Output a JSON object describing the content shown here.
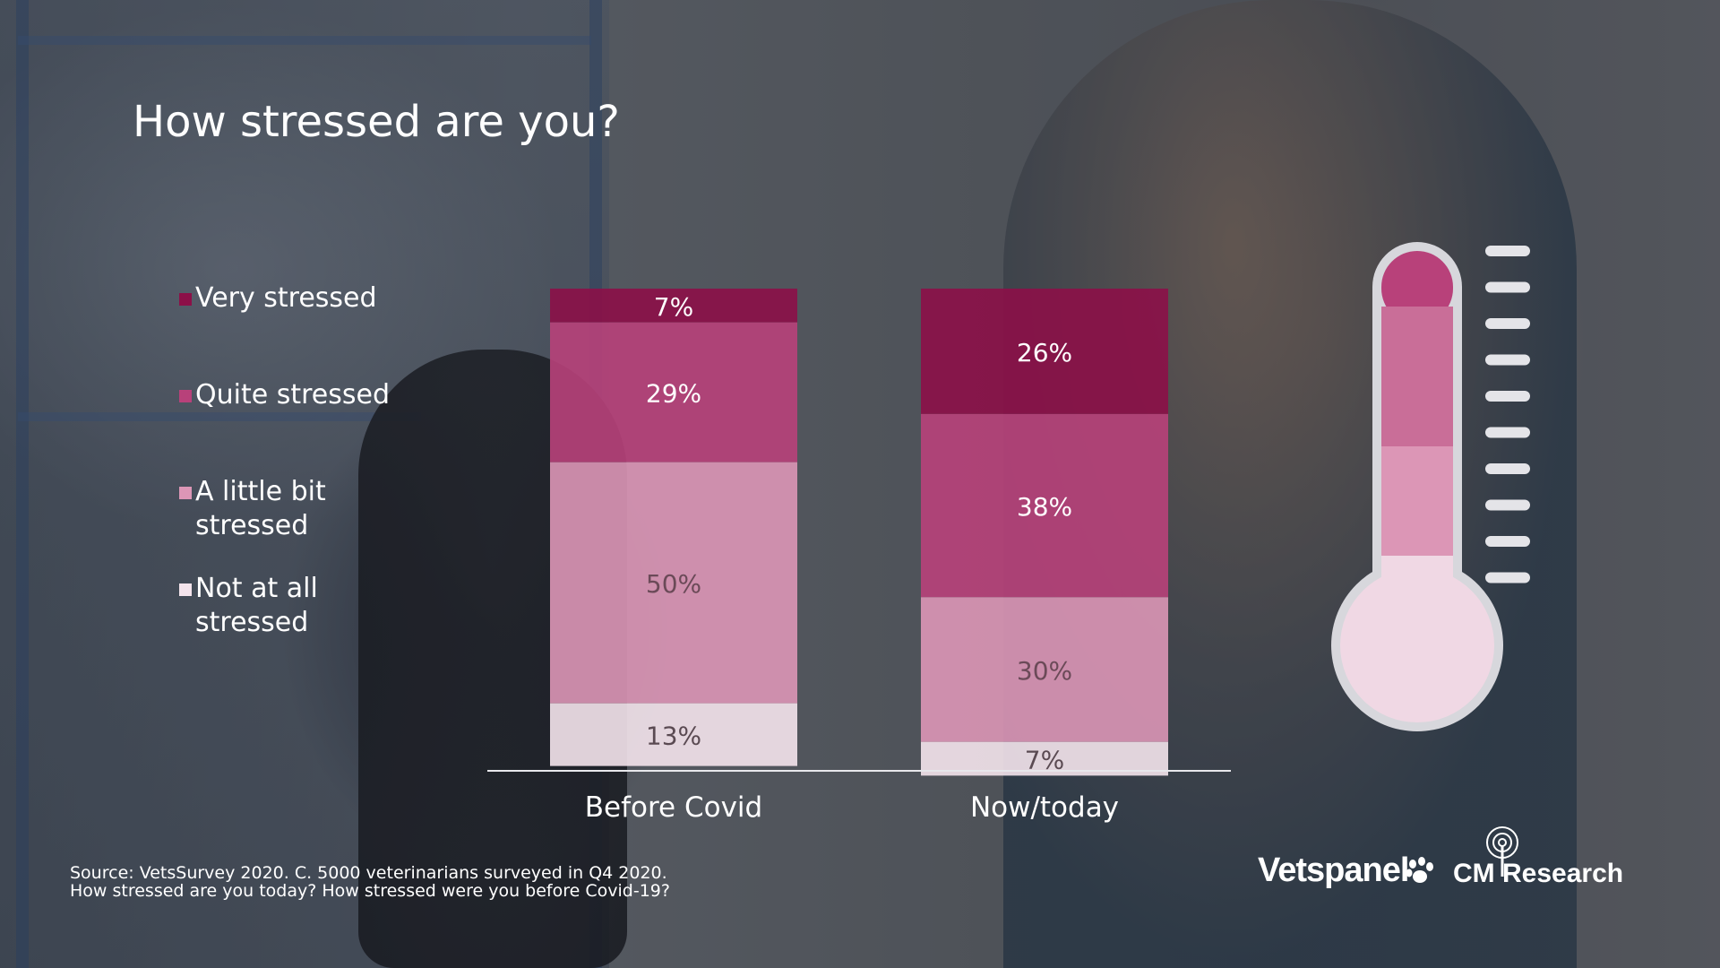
{
  "slide": {
    "title": "How stressed are you?",
    "source_line1": "Source: VetsSurvey 2020. C. 5000 veterinarians surveyed in Q4 2020.",
    "source_line2": "How stressed are you today? How stressed were you before Covid-19?"
  },
  "legend": [
    {
      "label_line1": "Very stressed",
      "label_line2": "",
      "color": "#8c1048"
    },
    {
      "label_line1": "Quite stressed",
      "label_line2": "",
      "color": "#b8417a"
    },
    {
      "label_line1": "A little bit",
      "label_line2": "stressed",
      "color": "#dc96b6"
    },
    {
      "label_line1": "Not at all",
      "label_line2": "stressed",
      "color": "#f4e4ec"
    }
  ],
  "chart_data": {
    "type": "bar",
    "stacked": true,
    "categories": [
      "Before Covid",
      "Now/today"
    ],
    "series": [
      {
        "name": "Very stressed",
        "values": [
          7,
          26
        ],
        "labels": [
          "7%",
          "26%"
        ],
        "color": "#8c1048",
        "label_color": "#ffffff"
      },
      {
        "name": "Quite stressed",
        "values": [
          29,
          38
        ],
        "labels": [
          "29%",
          "38%"
        ],
        "color": "#b8417a",
        "label_color": "#ffffff"
      },
      {
        "name": "A little bit stressed",
        "values": [
          50,
          30
        ],
        "labels": [
          "50%",
          "30%"
        ],
        "color": "#dc96b6",
        "label_color": "#6b4a58"
      },
      {
        "name": "Not at all stressed",
        "values": [
          13,
          7
        ],
        "labels": [
          "13%",
          "7%"
        ],
        "color": "#f4e4ec",
        "label_color": "#5a4a52"
      }
    ],
    "ylim": [
      0,
      100
    ],
    "grid": false,
    "legend_position": "left"
  },
  "thermometer": {
    "levels": [
      {
        "color": "#b8417a"
      },
      {
        "color": "#c96e98"
      },
      {
        "color": "#dc96b6"
      },
      {
        "color": "#f0d8e4"
      }
    ],
    "outline": "#d7d7dc",
    "tick_color": "#e4e4e8"
  },
  "logos": {
    "vetspanel": "Vetspanel",
    "cm_research": "CM Research",
    "paw_icon": "paw-icon",
    "cm_icon": "signal-tree-icon"
  }
}
